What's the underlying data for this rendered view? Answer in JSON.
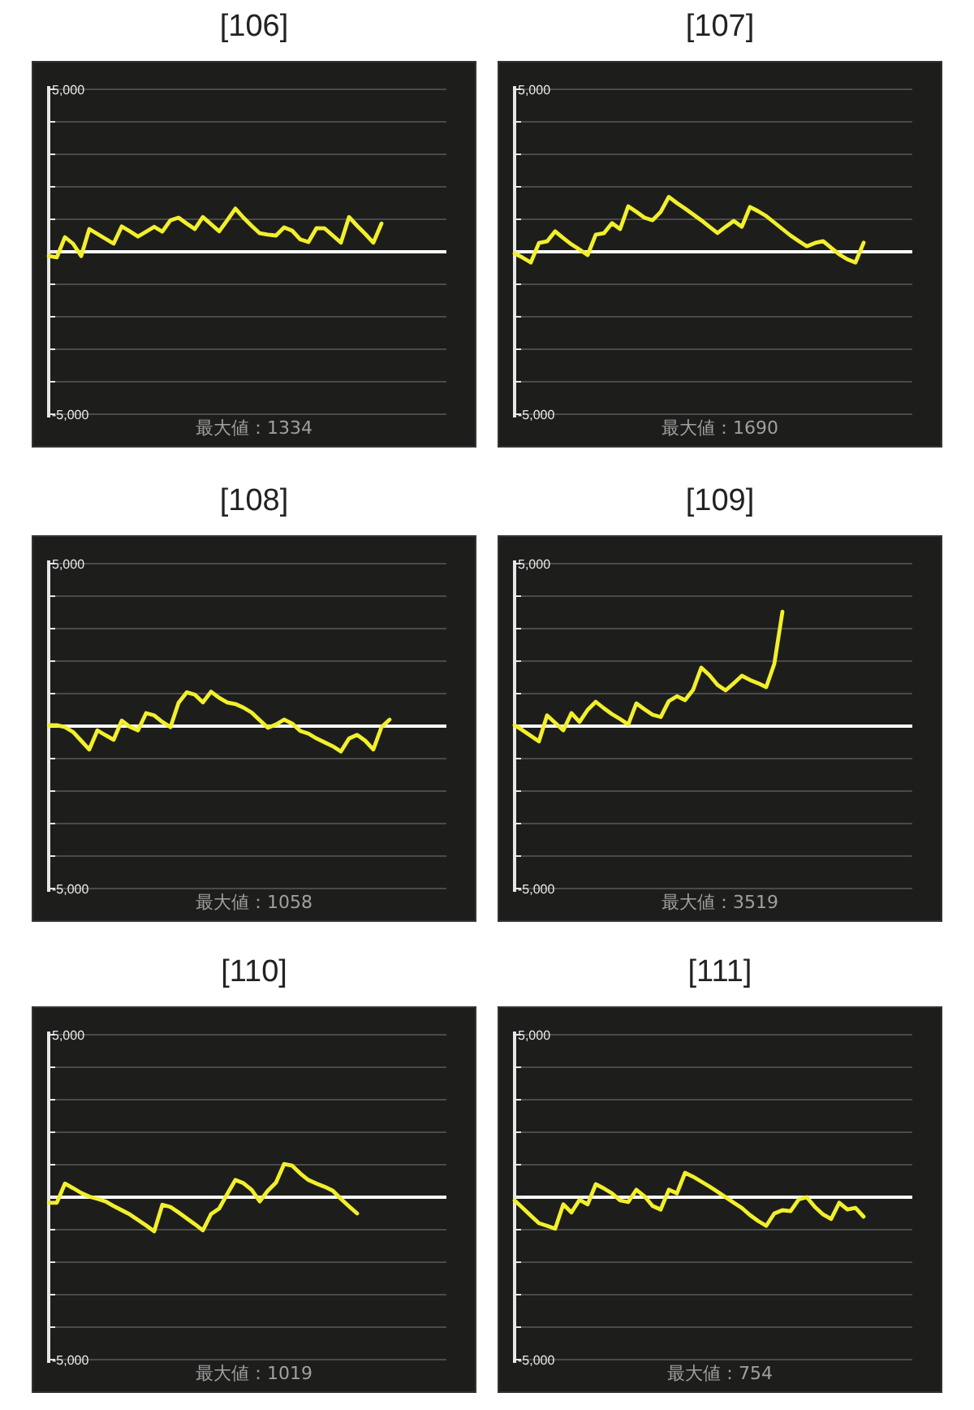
{
  "chart_data": [
    {
      "type": "line",
      "title": "[106]",
      "annotations": [
        "最大値：1334"
      ],
      "categories": [
        null,
        null,
        null,
        null,
        null,
        null,
        null,
        null,
        null,
        null,
        null,
        null,
        null,
        null,
        null,
        null,
        null,
        null,
        null,
        null,
        null,
        null,
        null,
        null,
        null,
        null,
        null,
        null,
        null,
        null,
        null,
        null,
        null,
        null,
        null,
        null,
        null,
        null,
        null,
        null,
        null,
        null,
        null,
        null,
        null,
        null,
        null,
        null,
        null,
        null
      ],
      "color": "#f2ef2c",
      "values": [
        -130,
        -170,
        450,
        250,
        -130,
        700,
        550,
        400,
        250,
        780,
        630,
        470,
        620,
        770,
        620,
        970,
        1050,
        870,
        700,
        1070,
        850,
        630,
        970,
        1330,
        1050,
        800,
        570,
        530,
        500,
        750,
        650,
        380,
        300,
        730,
        720,
        500,
        280,
        1070,
        800,
        550,
        280,
        870,
        null,
        null,
        null,
        null,
        null,
        null,
        null,
        null
      ],
      "ylim": [
        -5000,
        5000
      ],
      "yticks": [
        {
          "value": -5000,
          "label": "-5,000"
        },
        {
          "value": -4000,
          "label": null
        },
        {
          "value": -3000,
          "label": null
        },
        {
          "value": -2000,
          "label": null
        },
        {
          "value": -1000,
          "label": null
        },
        {
          "value": 0,
          "label": null
        },
        {
          "value": 1000,
          "label": null
        },
        {
          "value": 2000,
          "label": null
        },
        {
          "value": 3000,
          "label": null
        },
        {
          "value": 4000,
          "label": null
        },
        {
          "value": 5000,
          "label": "5,000"
        }
      ],
      "grid": "y",
      "tick_labels": "y",
      "ref_lines": [
        {
          "axis": "y",
          "value": 0,
          "color": "#ffffff"
        }
      ]
    },
    {
      "type": "line",
      "title": "[107]",
      "annotations": [
        "最大値：1690"
      ],
      "categories": [
        null,
        null,
        null,
        null,
        null,
        null,
        null,
        null,
        null,
        null,
        null,
        null,
        null,
        null,
        null,
        null,
        null,
        null,
        null,
        null,
        null,
        null,
        null,
        null,
        null,
        null,
        null,
        null,
        null,
        null,
        null,
        null,
        null,
        null,
        null,
        null,
        null,
        null,
        null,
        null,
        null,
        null,
        null,
        null,
        null,
        null,
        null,
        null,
        null,
        null
      ],
      "color": "#f2ef2c",
      "values": [
        -50,
        -180,
        -330,
        270,
        320,
        630,
        420,
        230,
        70,
        -100,
        530,
        570,
        880,
        700,
        1400,
        1230,
        1050,
        970,
        1230,
        1690,
        1500,
        1330,
        1150,
        970,
        770,
        580,
        770,
        950,
        770,
        1380,
        1250,
        1100,
        900,
        700,
        500,
        330,
        170,
        270,
        330,
        120,
        -80,
        -230,
        -330,
        280,
        null,
        null,
        null,
        null,
        null,
        null
      ],
      "ylim": [
        -5000,
        5000
      ],
      "yticks": [
        {
          "value": -5000,
          "label": "-5,000"
        },
        {
          "value": -4000,
          "label": null
        },
        {
          "value": -3000,
          "label": null
        },
        {
          "value": -2000,
          "label": null
        },
        {
          "value": -1000,
          "label": null
        },
        {
          "value": 0,
          "label": null
        },
        {
          "value": 1000,
          "label": null
        },
        {
          "value": 2000,
          "label": null
        },
        {
          "value": 3000,
          "label": null
        },
        {
          "value": 4000,
          "label": null
        },
        {
          "value": 5000,
          "label": "5,000"
        }
      ],
      "grid": "y",
      "tick_labels": "y",
      "ref_lines": [
        {
          "axis": "y",
          "value": 0,
          "color": "#ffffff"
        }
      ]
    },
    {
      "type": "line",
      "title": "[108]",
      "annotations": [
        "最大値：1058"
      ],
      "categories": [
        null,
        null,
        null,
        null,
        null,
        null,
        null,
        null,
        null,
        null,
        null,
        null,
        null,
        null,
        null,
        null,
        null,
        null,
        null,
        null,
        null,
        null,
        null,
        null,
        null,
        null,
        null,
        null,
        null,
        null,
        null,
        null,
        null,
        null,
        null,
        null,
        null,
        null,
        null,
        null,
        null,
        null,
        null,
        null,
        null,
        null,
        null,
        null,
        null,
        null
      ],
      "color": "#f2ef2c",
      "values": [
        30,
        30,
        -30,
        -180,
        -450,
        -720,
        -130,
        -280,
        -420,
        170,
        -20,
        -130,
        400,
        330,
        130,
        -30,
        720,
        1040,
        970,
        730,
        1060,
        870,
        730,
        680,
        570,
        420,
        180,
        -50,
        50,
        200,
        80,
        -150,
        -230,
        -380,
        -500,
        -620,
        -780,
        -380,
        -270,
        -450,
        -720,
        -30,
        200,
        null,
        null,
        null,
        null,
        null,
        null,
        null
      ],
      "ylim": [
        -5000,
        5000
      ],
      "yticks": [
        {
          "value": -5000,
          "label": "-5,000"
        },
        {
          "value": -4000,
          "label": null
        },
        {
          "value": -3000,
          "label": null
        },
        {
          "value": -2000,
          "label": null
        },
        {
          "value": -1000,
          "label": null
        },
        {
          "value": 0,
          "label": null
        },
        {
          "value": 1000,
          "label": null
        },
        {
          "value": 2000,
          "label": null
        },
        {
          "value": 3000,
          "label": null
        },
        {
          "value": 4000,
          "label": null
        },
        {
          "value": 5000,
          "label": "5,000"
        }
      ],
      "grid": "y",
      "tick_labels": "y",
      "ref_lines": [
        {
          "axis": "y",
          "value": 0,
          "color": "#ffffff"
        }
      ]
    },
    {
      "type": "line",
      "title": "[109]",
      "annotations": [
        "最大値：3519"
      ],
      "categories": [
        null,
        null,
        null,
        null,
        null,
        null,
        null,
        null,
        null,
        null,
        null,
        null,
        null,
        null,
        null,
        null,
        null,
        null,
        null,
        null,
        null,
        null,
        null,
        null,
        null,
        null,
        null,
        null,
        null,
        null,
        null,
        null,
        null,
        null,
        null,
        null,
        null,
        null,
        null,
        null,
        null,
        null,
        null,
        null,
        null,
        null,
        null,
        null,
        null,
        null
      ],
      "color": "#f2ef2c",
      "values": [
        30,
        -130,
        -300,
        -470,
        330,
        100,
        -130,
        400,
        130,
        500,
        750,
        550,
        370,
        220,
        50,
        700,
        520,
        350,
        280,
        770,
        920,
        800,
        1120,
        1800,
        1570,
        1270,
        1100,
        1320,
        1550,
        1420,
        1320,
        1200,
        1920,
        3520,
        null,
        null,
        null,
        null,
        null,
        null,
        null,
        null,
        null,
        null,
        null,
        null,
        null,
        null,
        null,
        null
      ],
      "ylim": [
        -5000,
        5000
      ],
      "yticks": [
        {
          "value": -5000,
          "label": "-5,000"
        },
        {
          "value": -4000,
          "label": null
        },
        {
          "value": -3000,
          "label": null
        },
        {
          "value": -2000,
          "label": null
        },
        {
          "value": -1000,
          "label": null
        },
        {
          "value": 0,
          "label": null
        },
        {
          "value": 1000,
          "label": null
        },
        {
          "value": 2000,
          "label": null
        },
        {
          "value": 3000,
          "label": null
        },
        {
          "value": 4000,
          "label": null
        },
        {
          "value": 5000,
          "label": "5,000"
        }
      ],
      "grid": "y",
      "tick_labels": "y",
      "ref_lines": [
        {
          "axis": "y",
          "value": 0,
          "color": "#ffffff"
        }
      ]
    },
    {
      "type": "line",
      "title": "[110]",
      "annotations": [
        "最大値：1019"
      ],
      "categories": [
        null,
        null,
        null,
        null,
        null,
        null,
        null,
        null,
        null,
        null,
        null,
        null,
        null,
        null,
        null,
        null,
        null,
        null,
        null,
        null,
        null,
        null,
        null,
        null,
        null,
        null,
        null,
        null,
        null,
        null,
        null,
        null,
        null,
        null,
        null,
        null,
        null,
        null,
        null,
        null,
        null,
        null,
        null,
        null,
        null,
        null,
        null,
        null,
        null,
        null
      ],
      "color": "#f2ef2c",
      "values": [
        -170,
        -170,
        420,
        280,
        130,
        20,
        -50,
        -130,
        -270,
        -400,
        -530,
        -700,
        -870,
        -1050,
        -230,
        -300,
        -470,
        -650,
        -830,
        -1020,
        -520,
        -350,
        100,
        530,
        430,
        230,
        -130,
        200,
        450,
        1020,
        970,
        730,
        530,
        420,
        320,
        200,
        -50,
        -280,
        -500,
        null,
        null,
        null,
        null,
        null,
        null,
        null,
        null,
        null,
        null,
        null
      ],
      "ylim": [
        -5000,
        5000
      ],
      "yticks": [
        {
          "value": -5000,
          "label": "-5,000"
        },
        {
          "value": -4000,
          "label": null
        },
        {
          "value": -3000,
          "label": null
        },
        {
          "value": -2000,
          "label": null
        },
        {
          "value": -1000,
          "label": null
        },
        {
          "value": 0,
          "label": null
        },
        {
          "value": 1000,
          "label": null
        },
        {
          "value": 2000,
          "label": null
        },
        {
          "value": 3000,
          "label": null
        },
        {
          "value": 4000,
          "label": null
        },
        {
          "value": 5000,
          "label": "5,000"
        }
      ],
      "grid": "y",
      "tick_labels": "y",
      "ref_lines": [
        {
          "axis": "y",
          "value": 0,
          "color": "#ffffff"
        }
      ]
    },
    {
      "type": "line",
      "title": "[111]",
      "annotations": [
        "最大値：754"
      ],
      "categories": [
        null,
        null,
        null,
        null,
        null,
        null,
        null,
        null,
        null,
        null,
        null,
        null,
        null,
        null,
        null,
        null,
        null,
        null,
        null,
        null,
        null,
        null,
        null,
        null,
        null,
        null,
        null,
        null,
        null,
        null,
        null,
        null,
        null,
        null,
        null,
        null,
        null,
        null,
        null,
        null,
        null,
        null,
        null,
        null,
        null,
        null,
        null,
        null,
        null,
        null
      ],
      "color": "#f2ef2c",
      "values": [
        -100,
        -330,
        -570,
        -800,
        -880,
        -970,
        -220,
        -470,
        -80,
        -220,
        400,
        270,
        120,
        -100,
        -150,
        230,
        30,
        -270,
        -380,
        230,
        120,
        750,
        630,
        480,
        330,
        170,
        0,
        -170,
        -330,
        -550,
        -730,
        -880,
        -500,
        -400,
        -430,
        -70,
        0,
        -300,
        -530,
        -670,
        -170,
        -380,
        -330,
        -600,
        null,
        null,
        null,
        null,
        null,
        null
      ],
      "ylim": [
        -5000,
        5000
      ],
      "yticks": [
        {
          "value": -5000,
          "label": "-5,000"
        },
        {
          "value": -4000,
          "label": null
        },
        {
          "value": -3000,
          "label": null
        },
        {
          "value": -2000,
          "label": null
        },
        {
          "value": -1000,
          "label": null
        },
        {
          "value": 0,
          "label": null
        },
        {
          "value": 1000,
          "label": null
        },
        {
          "value": 2000,
          "label": null
        },
        {
          "value": 3000,
          "label": null
        },
        {
          "value": 4000,
          "label": null
        },
        {
          "value": 5000,
          "label": "5,000"
        }
      ],
      "grid": "y",
      "tick_labels": "y",
      "ref_lines": [
        {
          "axis": "y",
          "value": 0,
          "color": "#ffffff"
        }
      ]
    }
  ]
}
